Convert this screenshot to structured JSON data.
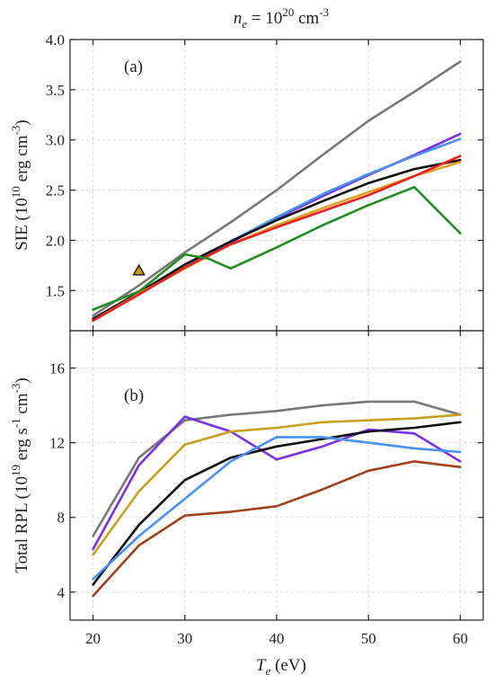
{
  "figure": {
    "title_parts": [
      "n",
      "e",
      " = 10",
      "20",
      " cm",
      "-3"
    ],
    "xlabel_parts": [
      "T",
      "e",
      " (eV)"
    ],
    "xticks": [
      "20",
      "30",
      "40",
      "50",
      "60"
    ]
  },
  "chart_data": [
    {
      "type": "line",
      "panel_label": "(a)",
      "ylabel_parts": [
        "SIE (10",
        "10",
        " erg cm",
        "-3",
        ")"
      ],
      "xlim": [
        17.5,
        62.5
      ],
      "ylim": [
        1.1,
        4.0
      ],
      "yticks": [
        "1.5",
        "2.0",
        "2.5",
        "3.0",
        "3.5",
        "4.0"
      ],
      "ytick_values": [
        1.5,
        2.0,
        2.5,
        3.0,
        3.5,
        4.0
      ],
      "grid": true,
      "series": [
        {
          "color": "#777777",
          "x": [
            20,
            25,
            30,
            35,
            40,
            45,
            50,
            55,
            60
          ],
          "y": [
            1.25,
            1.55,
            1.88,
            2.18,
            2.5,
            2.85,
            3.19,
            3.48,
            3.78
          ]
        },
        {
          "color": "#7b2fe0",
          "x": [
            20,
            25,
            30,
            35,
            40,
            45,
            50,
            55,
            60
          ],
          "y": [
            1.22,
            1.47,
            1.72,
            1.98,
            2.22,
            2.44,
            2.65,
            2.85,
            3.06
          ]
        },
        {
          "color": "#4a90f0",
          "x": [
            20,
            25,
            30,
            35,
            40,
            45,
            50,
            55,
            60
          ],
          "y": [
            1.21,
            1.47,
            1.73,
            1.99,
            2.23,
            2.46,
            2.66,
            2.84,
            3.01
          ]
        },
        {
          "color": "#111111",
          "x": [
            20,
            25,
            30,
            35,
            40,
            45,
            50,
            55,
            60
          ],
          "y": [
            1.22,
            1.48,
            1.76,
            1.99,
            2.2,
            2.39,
            2.57,
            2.71,
            2.8
          ]
        },
        {
          "color": "#e0a020",
          "x": [
            20,
            25,
            30,
            35,
            40,
            45,
            50,
            55,
            60
          ],
          "y": [
            1.2,
            1.47,
            1.72,
            1.96,
            2.15,
            2.32,
            2.48,
            2.64,
            2.78
          ]
        },
        {
          "color": "#e82020",
          "x": [
            20,
            25,
            30,
            35,
            40,
            45,
            50,
            55,
            60
          ],
          "y": [
            1.2,
            1.46,
            1.73,
            1.96,
            2.13,
            2.29,
            2.45,
            2.64,
            2.84
          ]
        },
        {
          "color": "#228b22",
          "x": [
            20,
            25,
            30,
            32.5,
            35,
            40,
            45,
            50,
            55,
            60
          ],
          "y": [
            1.31,
            1.49,
            1.86,
            1.82,
            1.72,
            1.93,
            2.15,
            2.35,
            2.53,
            2.07
          ]
        }
      ],
      "markers": [
        {
          "shape": "triangle",
          "fill": "#c8a000",
          "stroke": "#222222",
          "x": 25,
          "y": 1.7
        }
      ]
    },
    {
      "type": "line",
      "panel_label": "(b)",
      "ylabel_parts": [
        "Total RPL (10",
        "19",
        " erg s",
        "-1",
        " cm",
        "-3",
        ")"
      ],
      "xlim": [
        17.5,
        62.5
      ],
      "ylim": [
        2.5,
        18
      ],
      "yticks": [
        "4",
        "8",
        "12",
        "16"
      ],
      "ytick_values": [
        4,
        8,
        12,
        16
      ],
      "grid": true,
      "series": [
        {
          "color": "#777777",
          "x": [
            20,
            25,
            30,
            35,
            40,
            45,
            50,
            55,
            60
          ],
          "y": [
            7.0,
            11.2,
            13.2,
            13.5,
            13.7,
            14.0,
            14.2,
            14.2,
            13.5
          ]
        },
        {
          "color": "#7b2fe0",
          "x": [
            20,
            25,
            30,
            35,
            40,
            45,
            50,
            55,
            60
          ],
          "y": [
            6.3,
            10.8,
            13.4,
            12.6,
            11.1,
            11.8,
            12.7,
            12.5,
            11.0
          ]
        },
        {
          "color": "#c8a020",
          "x": [
            20,
            25,
            30,
            35,
            40,
            45,
            50,
            55,
            60
          ],
          "y": [
            6.0,
            9.4,
            11.9,
            12.6,
            12.8,
            13.1,
            13.2,
            13.3,
            13.5
          ]
        },
        {
          "color": "#111111",
          "x": [
            20,
            25,
            30,
            35,
            40,
            45,
            50,
            55,
            60
          ],
          "y": [
            4.4,
            7.6,
            10.0,
            11.2,
            11.8,
            12.2,
            12.6,
            12.8,
            13.1
          ]
        },
        {
          "color": "#4a90f0",
          "x": [
            20,
            25,
            30,
            35,
            40,
            45,
            50,
            55,
            60
          ],
          "y": [
            4.7,
            7.0,
            9.0,
            11.0,
            12.3,
            12.3,
            12.0,
            11.7,
            11.5
          ]
        },
        {
          "color": "#a0401a",
          "x": [
            20,
            25,
            30,
            35,
            40,
            45,
            50,
            55,
            60
          ],
          "y": [
            3.8,
            6.5,
            8.1,
            8.3,
            8.6,
            9.5,
            10.5,
            11.0,
            10.7
          ]
        }
      ],
      "markers": []
    }
  ]
}
